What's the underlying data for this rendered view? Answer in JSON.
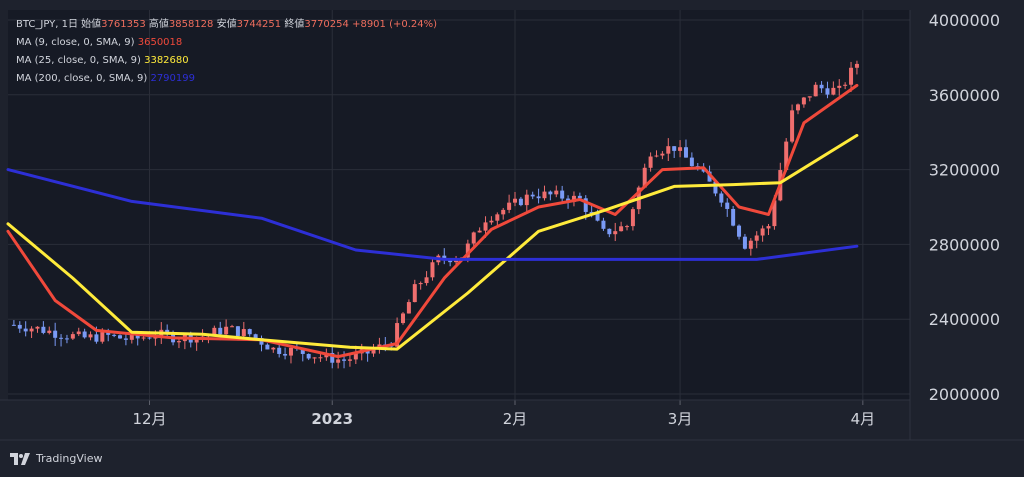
{
  "legend": {
    "symbol": "BTC_JPY, 1日",
    "open_label": "始値",
    "open_value": "3761353",
    "high_label": "高値",
    "high_value": "3858128",
    "low_label": "安値",
    "low_value": "3744251",
    "close_label": "終値",
    "close_value": "3770254",
    "change": "+8901 (+0.24%)",
    "ma": [
      {
        "label": "MA (9, close, 0, SMA, 9)",
        "value": "3650018",
        "color": "#f0493b"
      },
      {
        "label": "MA (25, close, 0, SMA, 9)",
        "value": "3382680",
        "color": "#ffeb3b"
      },
      {
        "label": "MA (200, close, 0, SMA, 9)",
        "value": "2790199",
        "color": "#2d2fd6"
      }
    ]
  },
  "brand": "TradingView",
  "colors": {
    "up": "#ef6e6e",
    "down": "#7a9af5",
    "grid": "#2a2e39",
    "text": "#d1d4dc"
  },
  "chart_data": {
    "type": "candlestick",
    "title": "",
    "ylim": [
      2000000,
      4000000
    ],
    "y_ticks": [
      2000000,
      2400000,
      2800000,
      3200000,
      3600000,
      4000000
    ],
    "x_ticks": [
      {
        "label": "12月",
        "date": "2022-12-01"
      },
      {
        "label": "2023",
        "date": "2023-01-01"
      },
      {
        "label": "2月",
        "date": "2023-02-01"
      },
      {
        "label": "3月",
        "date": "2023-03-01"
      },
      {
        "label": "4月",
        "date": "2023-04-01"
      }
    ],
    "x_start": "2022-11-07",
    "x_end": "2023-04-09",
    "ohlc_close": [
      [
        "2022-11-08",
        2370000
      ],
      [
        "2022-11-12",
        2350000
      ],
      [
        "2022-11-16",
        2320000
      ],
      [
        "2022-11-20",
        2300000
      ],
      [
        "2022-11-24",
        2310000
      ],
      [
        "2022-11-28",
        2290000
      ],
      [
        "2022-12-02",
        2320000
      ],
      [
        "2022-12-06",
        2300000
      ],
      [
        "2022-12-10",
        2310000
      ],
      [
        "2022-12-14",
        2350000
      ],
      [
        "2022-12-18",
        2320000
      ],
      [
        "2022-12-22",
        2240000
      ],
      [
        "2022-12-26",
        2230000
      ],
      [
        "2022-12-30",
        2200000
      ],
      [
        "2023-01-03",
        2180000
      ],
      [
        "2023-01-07",
        2220000
      ],
      [
        "2023-01-11",
        2280000
      ],
      [
        "2023-01-15",
        2560000
      ],
      [
        "2023-01-19",
        2720000
      ],
      [
        "2023-01-23",
        2740000
      ],
      [
        "2023-01-27",
        2940000
      ],
      [
        "2023-01-31",
        3000000
      ],
      [
        "2023-02-04",
        3070000
      ],
      [
        "2023-02-08",
        3060000
      ],
      [
        "2023-02-12",
        3040000
      ],
      [
        "2023-02-16",
        2860000
      ],
      [
        "2023-02-20",
        2900000
      ],
      [
        "2023-02-24",
        3300000
      ],
      [
        "2023-02-28",
        3320000
      ],
      [
        "2023-03-04",
        3200000
      ],
      [
        "2023-03-08",
        3050000
      ],
      [
        "2023-03-12",
        2800000
      ],
      [
        "2023-03-16",
        2900000
      ],
      [
        "2023-03-20",
        3500000
      ],
      [
        "2023-03-24",
        3640000
      ],
      [
        "2023-03-28",
        3620000
      ],
      [
        "2023-03-31",
        3770254
      ]
    ],
    "series": [
      {
        "name": "MA (9, close, 0, SMA, 9)",
        "color": "#f0493b",
        "points": [
          [
            "2022-11-07",
            2870000
          ],
          [
            "2022-11-15",
            2500000
          ],
          [
            "2022-11-22",
            2340000
          ],
          [
            "2022-12-05",
            2300000
          ],
          [
            "2022-12-20",
            2290000
          ],
          [
            "2023-01-02",
            2200000
          ],
          [
            "2023-01-12",
            2270000
          ],
          [
            "2023-01-20",
            2620000
          ],
          [
            "2023-01-28",
            2880000
          ],
          [
            "2023-02-05",
            3000000
          ],
          [
            "2023-02-12",
            3040000
          ],
          [
            "2023-02-18",
            2960000
          ],
          [
            "2023-02-26",
            3200000
          ],
          [
            "2023-03-05",
            3210000
          ],
          [
            "2023-03-11",
            3000000
          ],
          [
            "2023-03-16",
            2960000
          ],
          [
            "2023-03-22",
            3450000
          ],
          [
            "2023-03-31",
            3650018
          ]
        ]
      },
      {
        "name": "MA (25, close, 0, SMA, 9)",
        "color": "#ffeb3b",
        "points": [
          [
            "2022-11-07",
            2910000
          ],
          [
            "2022-11-18",
            2620000
          ],
          [
            "2022-11-28",
            2330000
          ],
          [
            "2022-12-10",
            2320000
          ],
          [
            "2022-12-20",
            2290000
          ],
          [
            "2023-01-04",
            2250000
          ],
          [
            "2023-01-12",
            2240000
          ],
          [
            "2023-01-24",
            2540000
          ],
          [
            "2023-02-05",
            2870000
          ],
          [
            "2023-02-16",
            2980000
          ],
          [
            "2023-02-28",
            3110000
          ],
          [
            "2023-03-10",
            3120000
          ],
          [
            "2023-03-18",
            3130000
          ],
          [
            "2023-03-31",
            3382680
          ]
        ]
      },
      {
        "name": "MA (200, close, 0, SMA, 9)",
        "color": "#2d2fd6",
        "points": [
          [
            "2022-11-07",
            3200000
          ],
          [
            "2022-11-28",
            3030000
          ],
          [
            "2022-12-20",
            2940000
          ],
          [
            "2023-01-05",
            2770000
          ],
          [
            "2023-01-20",
            2720000
          ],
          [
            "2023-02-20",
            2720000
          ],
          [
            "2023-03-14",
            2720000
          ],
          [
            "2023-03-31",
            2790199
          ]
        ]
      }
    ]
  }
}
